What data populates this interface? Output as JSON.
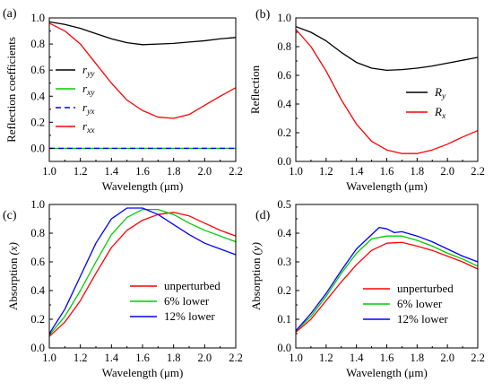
{
  "chart_data": [
    {
      "type": "line",
      "panel_label": "(a)",
      "xlabel": "Wavelength (μm)",
      "ylabel": "Reflection coefficients",
      "xlim": [
        1.0,
        2.2
      ],
      "ylim": [
        -0.1,
        1.0
      ],
      "xticks": [
        1.0,
        1.2,
        1.4,
        1.6,
        1.8,
        2.0,
        2.2
      ],
      "yticks": [
        0.0,
        0.2,
        0.4,
        0.6,
        0.8,
        1.0
      ],
      "legend_position": "left",
      "series": [
        {
          "name": "yy",
          "color": "#000000",
          "dash": "",
          "x": [
            1.0,
            1.1,
            1.2,
            1.3,
            1.4,
            1.5,
            1.6,
            1.7,
            1.8,
            1.9,
            2.0,
            2.1,
            2.2
          ],
          "y": [
            0.97,
            0.95,
            0.92,
            0.88,
            0.84,
            0.81,
            0.795,
            0.8,
            0.805,
            0.815,
            0.825,
            0.84,
            0.85
          ]
        },
        {
          "name": "xy",
          "color": "#00cc00",
          "dash": "",
          "x": [
            1.0,
            2.2
          ],
          "y": [
            0.0,
            0.0
          ]
        },
        {
          "name": "yx",
          "color": "#0000ff",
          "dash": "6,4",
          "x": [
            1.0,
            2.2
          ],
          "y": [
            0.0,
            0.0
          ]
        },
        {
          "name": "xx",
          "color": "#ff0000",
          "dash": "",
          "x": [
            1.0,
            1.1,
            1.2,
            1.3,
            1.4,
            1.5,
            1.6,
            1.7,
            1.8,
            1.9,
            2.0,
            2.1,
            2.2
          ],
          "y": [
            0.96,
            0.9,
            0.8,
            0.65,
            0.5,
            0.37,
            0.29,
            0.24,
            0.23,
            0.26,
            0.33,
            0.4,
            0.465
          ]
        }
      ]
    },
    {
      "type": "line",
      "panel_label": "(b)",
      "xlabel": "Wavelength (μm)",
      "ylabel": "Reflection",
      "xlim": [
        1.0,
        2.2
      ],
      "ylim": [
        0.0,
        1.0
      ],
      "xticks": [
        1.0,
        1.2,
        1.4,
        1.6,
        1.8,
        2.0,
        2.2
      ],
      "yticks": [
        0.0,
        0.2,
        0.4,
        0.6,
        0.8,
        1.0
      ],
      "legend_position": "right",
      "series": [
        {
          "name": "y",
          "color": "#000000",
          "dash": "",
          "x": [
            1.0,
            1.1,
            1.2,
            1.3,
            1.4,
            1.5,
            1.6,
            1.7,
            1.8,
            1.9,
            2.0,
            2.1,
            2.2
          ],
          "y": [
            0.94,
            0.9,
            0.84,
            0.76,
            0.69,
            0.65,
            0.635,
            0.64,
            0.65,
            0.665,
            0.685,
            0.705,
            0.725
          ]
        },
        {
          "name": "x",
          "color": "#ff0000",
          "dash": "",
          "x": [
            1.0,
            1.1,
            1.2,
            1.3,
            1.4,
            1.5,
            1.6,
            1.7,
            1.8,
            1.9,
            2.0,
            2.1,
            2.2
          ],
          "y": [
            0.92,
            0.8,
            0.63,
            0.43,
            0.26,
            0.14,
            0.08,
            0.055,
            0.055,
            0.08,
            0.12,
            0.17,
            0.215
          ]
        }
      ]
    },
    {
      "type": "line",
      "panel_label": "(c)",
      "xlabel": "Wavelength (μm)",
      "ylabel": "Absorption",
      "ylabel_var": "(x)",
      "xlim": [
        1.0,
        2.2
      ],
      "ylim": [
        0.0,
        1.0
      ],
      "xticks": [
        1.0,
        1.2,
        1.4,
        1.6,
        1.8,
        2.0,
        2.2
      ],
      "yticks": [
        0.0,
        0.2,
        0.4,
        0.6,
        0.8,
        1.0
      ],
      "legend_position": "bottom-right",
      "series": [
        {
          "name": "unperturbed",
          "color": "#ff0000",
          "dash": "",
          "x": [
            1.0,
            1.1,
            1.2,
            1.3,
            1.4,
            1.5,
            1.6,
            1.7,
            1.8,
            1.9,
            2.0,
            2.1,
            2.2
          ],
          "y": [
            0.08,
            0.18,
            0.33,
            0.52,
            0.7,
            0.82,
            0.89,
            0.93,
            0.945,
            0.92,
            0.87,
            0.82,
            0.78
          ]
        },
        {
          "name": "6% lower",
          "color": "#00cc00",
          "dash": "",
          "x": [
            1.0,
            1.1,
            1.2,
            1.3,
            1.4,
            1.5,
            1.6,
            1.7,
            1.8,
            1.9,
            2.0,
            2.1,
            2.2
          ],
          "y": [
            0.09,
            0.22,
            0.4,
            0.6,
            0.79,
            0.91,
            0.965,
            0.965,
            0.93,
            0.87,
            0.82,
            0.78,
            0.74
          ]
        },
        {
          "name": "12% lower",
          "color": "#0000ff",
          "dash": "",
          "x": [
            1.0,
            1.1,
            1.2,
            1.3,
            1.4,
            1.5,
            1.6,
            1.7,
            1.8,
            1.9,
            2.0,
            2.1,
            2.2
          ],
          "y": [
            0.1,
            0.27,
            0.5,
            0.73,
            0.9,
            0.975,
            0.975,
            0.93,
            0.86,
            0.79,
            0.73,
            0.69,
            0.65
          ]
        }
      ]
    },
    {
      "type": "line",
      "panel_label": "(d)",
      "xlabel": "Wavelength (μm)",
      "ylabel": "Absorption",
      "ylabel_var": "(y)",
      "xlim": [
        1.0,
        2.2
      ],
      "ylim": [
        0.0,
        0.5
      ],
      "xticks": [
        1.0,
        1.2,
        1.4,
        1.6,
        1.8,
        2.0,
        2.2
      ],
      "yticks": [
        0.0,
        0.1,
        0.2,
        0.3,
        0.4,
        0.5
      ],
      "legend_position": "bottom-right",
      "series": [
        {
          "name": "unperturbed",
          "color": "#ff0000",
          "dash": "",
          "x": [
            1.0,
            1.1,
            1.2,
            1.3,
            1.4,
            1.5,
            1.6,
            1.7,
            1.8,
            1.9,
            2.0,
            2.1,
            2.2
          ],
          "y": [
            0.055,
            0.1,
            0.165,
            0.23,
            0.29,
            0.34,
            0.365,
            0.368,
            0.355,
            0.34,
            0.32,
            0.3,
            0.275
          ]
        },
        {
          "name": "6% lower",
          "color": "#00cc00",
          "dash": "",
          "x": [
            1.0,
            1.1,
            1.2,
            1.3,
            1.4,
            1.5,
            1.6,
            1.7,
            1.8,
            1.9,
            2.0,
            2.1,
            2.2
          ],
          "y": [
            0.06,
            0.11,
            0.18,
            0.26,
            0.33,
            0.38,
            0.39,
            0.39,
            0.375,
            0.355,
            0.33,
            0.31,
            0.285
          ]
        },
        {
          "name": "12% lower",
          "color": "#0000ff",
          "dash": "",
          "x": [
            1.0,
            1.1,
            1.2,
            1.3,
            1.4,
            1.45,
            1.5,
            1.55,
            1.6,
            1.65,
            1.7,
            1.8,
            1.9,
            2.0,
            2.1,
            2.2
          ],
          "y": [
            0.06,
            0.12,
            0.19,
            0.27,
            0.345,
            0.37,
            0.395,
            0.42,
            0.415,
            0.402,
            0.405,
            0.39,
            0.37,
            0.345,
            0.32,
            0.3
          ]
        }
      ]
    }
  ]
}
